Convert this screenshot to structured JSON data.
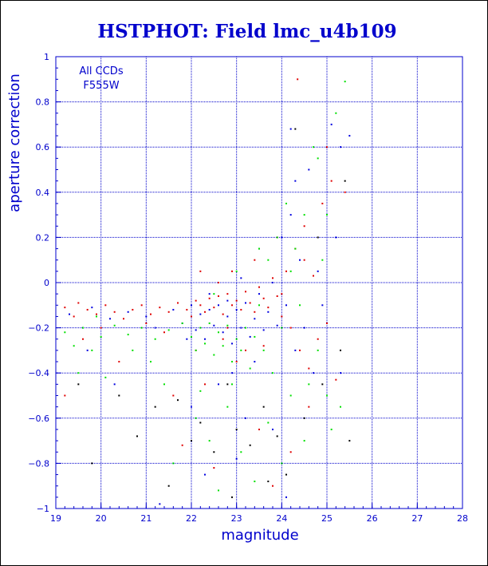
{
  "chart_data": {
    "type": "scatter",
    "title": "HSTPHOT: Field lmc_u4b109",
    "xlabel": "magnitude",
    "ylabel": "aperture correction",
    "xlim": [
      19,
      28
    ],
    "ylim": [
      -1,
      1
    ],
    "x_ticks": [
      "19",
      "20",
      "21",
      "22",
      "23",
      "24",
      "25",
      "26",
      "27",
      "28"
    ],
    "y_ticks": [
      "−1",
      "−0.8",
      "−0.6",
      "−0.4",
      "−0.2",
      "0",
      "0.2",
      "0.4",
      "0.6",
      "0.8",
      "1"
    ],
    "grid": true,
    "annotations": [
      "All CCDs",
      "F555W"
    ],
    "series": [
      {
        "color": "#e00000",
        "points": [
          [
            19.2,
            -0.11
          ],
          [
            19.4,
            -0.15
          ],
          [
            19.5,
            -0.09
          ],
          [
            19.7,
            -0.12
          ],
          [
            19.9,
            -0.14
          ],
          [
            20.1,
            -0.1
          ],
          [
            20.3,
            -0.13
          ],
          [
            20.5,
            -0.16
          ],
          [
            20.7,
            -0.12
          ],
          [
            20.9,
            -0.1
          ],
          [
            21.1,
            -0.14
          ],
          [
            21.3,
            -0.11
          ],
          [
            21.5,
            -0.13
          ],
          [
            21.7,
            -0.09
          ],
          [
            21.9,
            -0.12
          ],
          [
            22.0,
            -0.15
          ],
          [
            22.1,
            -0.08
          ],
          [
            22.2,
            -0.1
          ],
          [
            22.3,
            -0.13
          ],
          [
            22.4,
            -0.07
          ],
          [
            22.5,
            -0.11
          ],
          [
            22.6,
            -0.06
          ],
          [
            22.7,
            -0.14
          ],
          [
            22.8,
            -0.05
          ],
          [
            22.9,
            -0.1
          ],
          [
            23.0,
            -0.08
          ],
          [
            23.1,
            -0.12
          ],
          [
            23.2,
            -0.04
          ],
          [
            23.3,
            -0.09
          ],
          [
            23.4,
            -0.13
          ],
          [
            23.5,
            -0.02
          ],
          [
            23.6,
            -0.07
          ],
          [
            23.7,
            -0.11
          ],
          [
            23.8,
            0.02
          ],
          [
            23.9,
            -0.06
          ],
          [
            24.0,
            -0.15
          ],
          [
            24.1,
            0.05
          ],
          [
            24.2,
            -0.2
          ],
          [
            24.3,
            0.15
          ],
          [
            24.4,
            -0.3
          ],
          [
            24.5,
            0.1
          ],
          [
            24.6,
            -0.38
          ],
          [
            24.7,
            0.03
          ],
          [
            24.8,
            -0.25
          ],
          [
            24.9,
            0.35
          ],
          [
            25.0,
            -0.18
          ],
          [
            25.1,
            0.45
          ],
          [
            25.2,
            -0.43
          ],
          [
            25.4,
            0.4
          ],
          [
            24.35,
            0.9
          ],
          [
            19.2,
            -0.5
          ],
          [
            20.4,
            -0.35
          ],
          [
            21.6,
            -0.5
          ],
          [
            22.3,
            -0.45
          ],
          [
            22.7,
            -0.25
          ],
          [
            23.2,
            -0.3
          ],
          [
            23.5,
            -0.65
          ],
          [
            24.2,
            -0.75
          ],
          [
            24.6,
            -0.55
          ],
          [
            22.5,
            -0.82
          ],
          [
            21.8,
            -0.72
          ],
          [
            23.8,
            -0.9
          ],
          [
            22.9,
            0.05
          ],
          [
            23.4,
            0.1
          ],
          [
            22.6,
            0.0
          ],
          [
            22.8,
            -0.2
          ],
          [
            21.0,
            -0.18
          ],
          [
            20.0,
            -0.2
          ],
          [
            19.6,
            -0.25
          ],
          [
            22.2,
            0.05
          ],
          [
            24.5,
            0.25
          ],
          [
            23.9,
            0.2
          ],
          [
            22.1,
            -0.3
          ],
          [
            21.4,
            -0.22
          ],
          [
            25.0,
            0.6
          ],
          [
            24.0,
            -0.05
          ],
          [
            23.6,
            -0.28
          ],
          [
            23.0,
            -0.35
          ]
        ]
      },
      {
        "color": "#0000e0",
        "points": [
          [
            19.3,
            -0.14
          ],
          [
            19.6,
            -0.2
          ],
          [
            19.8,
            -0.11
          ],
          [
            20.2,
            -0.16
          ],
          [
            20.6,
            -0.13
          ],
          [
            21.0,
            -0.15
          ],
          [
            21.2,
            -0.2
          ],
          [
            21.6,
            -0.12
          ],
          [
            21.8,
            -0.18
          ],
          [
            22.0,
            -0.1
          ],
          [
            22.1,
            -0.21
          ],
          [
            22.2,
            -0.14
          ],
          [
            22.3,
            -0.25
          ],
          [
            22.4,
            -0.12
          ],
          [
            22.5,
            -0.19
          ],
          [
            22.6,
            -0.1
          ],
          [
            22.7,
            -0.22
          ],
          [
            22.8,
            -0.15
          ],
          [
            22.9,
            -0.27
          ],
          [
            23.0,
            -0.12
          ],
          [
            23.1,
            -0.2
          ],
          [
            23.2,
            -0.09
          ],
          [
            23.3,
            -0.24
          ],
          [
            23.4,
            -0.16
          ],
          [
            23.5,
            -0.05
          ],
          [
            23.6,
            -0.21
          ],
          [
            23.7,
            -0.13
          ],
          [
            23.8,
            0.0
          ],
          [
            23.9,
            -0.19
          ],
          [
            24.0,
            0.2
          ],
          [
            24.1,
            -0.1
          ],
          [
            24.2,
            0.3
          ],
          [
            24.3,
            -0.3
          ],
          [
            24.4,
            0.1
          ],
          [
            24.5,
            -0.2
          ],
          [
            24.6,
            0.5
          ],
          [
            24.7,
            -0.4
          ],
          [
            24.8,
            0.05
          ],
          [
            25.1,
            0.7
          ],
          [
            25.3,
            0.6
          ],
          [
            25.5,
            0.65
          ],
          [
            25.3,
            -0.4
          ],
          [
            24.2,
            0.68
          ],
          [
            22.0,
            -0.55
          ],
          [
            22.6,
            -0.45
          ],
          [
            23.2,
            -0.6
          ],
          [
            23.8,
            -0.65
          ],
          [
            22.3,
            -0.85
          ],
          [
            23.0,
            -0.78
          ],
          [
            24.1,
            -0.95
          ],
          [
            21.3,
            -0.98
          ],
          [
            20.3,
            -0.45
          ],
          [
            19.7,
            -0.3
          ],
          [
            22.9,
            -0.4
          ],
          [
            23.5,
            0.15
          ],
          [
            24.3,
            0.45
          ],
          [
            22.4,
            -0.05
          ],
          [
            23.1,
            0.02
          ],
          [
            22.8,
            -0.08
          ],
          [
            21.9,
            -0.25
          ],
          [
            23.4,
            -0.35
          ],
          [
            24.9,
            -0.1
          ],
          [
            25.2,
            0.2
          ]
        ]
      },
      {
        "color": "#00e000",
        "points": [
          [
            19.2,
            -0.22
          ],
          [
            19.4,
            -0.28
          ],
          [
            19.6,
            -0.2
          ],
          [
            19.8,
            -0.3
          ],
          [
            20.0,
            -0.24
          ],
          [
            20.3,
            -0.19
          ],
          [
            20.6,
            -0.23
          ],
          [
            20.9,
            -0.2
          ],
          [
            21.2,
            -0.25
          ],
          [
            21.5,
            -0.21
          ],
          [
            21.8,
            -0.18
          ],
          [
            22.0,
            -0.24
          ],
          [
            22.1,
            -0.3
          ],
          [
            22.2,
            -0.2
          ],
          [
            22.3,
            -0.27
          ],
          [
            22.4,
            -0.18
          ],
          [
            22.5,
            -0.32
          ],
          [
            22.6,
            -0.22
          ],
          [
            22.7,
            -0.28
          ],
          [
            22.8,
            -0.19
          ],
          [
            22.9,
            -0.35
          ],
          [
            23.0,
            -0.25
          ],
          [
            23.1,
            -0.3
          ],
          [
            23.2,
            -0.2
          ],
          [
            23.3,
            -0.38
          ],
          [
            23.4,
            -0.24
          ],
          [
            23.5,
            -0.1
          ],
          [
            23.6,
            -0.3
          ],
          [
            23.7,
            0.1
          ],
          [
            23.8,
            -0.4
          ],
          [
            23.9,
            0.2
          ],
          [
            24.0,
            -0.2
          ],
          [
            24.1,
            0.35
          ],
          [
            24.2,
            -0.5
          ],
          [
            24.3,
            0.15
          ],
          [
            24.4,
            -0.1
          ],
          [
            24.5,
            0.3
          ],
          [
            24.6,
            -0.45
          ],
          [
            24.7,
            0.6
          ],
          [
            24.8,
            -0.3
          ],
          [
            24.9,
            0.1
          ],
          [
            25.0,
            -0.5
          ],
          [
            25.1,
            -0.65
          ],
          [
            25.2,
            0.75
          ],
          [
            25.4,
            0.89
          ],
          [
            25.3,
            -0.55
          ],
          [
            19.5,
            -0.4
          ],
          [
            20.1,
            -0.42
          ],
          [
            20.7,
            -0.3
          ],
          [
            21.4,
            -0.45
          ],
          [
            22.1,
            -0.6
          ],
          [
            22.4,
            -0.7
          ],
          [
            22.8,
            -0.55
          ],
          [
            23.1,
            -0.75
          ],
          [
            23.4,
            -0.88
          ],
          [
            23.7,
            -0.62
          ],
          [
            22.6,
            -0.92
          ],
          [
            21.6,
            -0.8
          ],
          [
            24.0,
            -0.8
          ],
          [
            24.5,
            -0.7
          ],
          [
            23.0,
            0.05
          ],
          [
            22.5,
            -0.05
          ],
          [
            23.5,
            0.15
          ],
          [
            24.2,
            0.05
          ],
          [
            22.9,
            -0.45
          ],
          [
            21.1,
            -0.35
          ],
          [
            19.9,
            -0.15
          ],
          [
            24.8,
            0.55
          ],
          [
            25.0,
            0.3
          ],
          [
            22.2,
            -0.48
          ]
        ]
      },
      {
        "color": "#000000",
        "points": [
          [
            19.5,
            -0.45
          ],
          [
            19.8,
            -0.8
          ],
          [
            20.4,
            -0.5
          ],
          [
            20.8,
            -0.68
          ],
          [
            21.2,
            -0.55
          ],
          [
            21.5,
            -0.9
          ],
          [
            21.7,
            -0.52
          ],
          [
            22.0,
            -0.7
          ],
          [
            22.2,
            -0.62
          ],
          [
            22.5,
            -0.75
          ],
          [
            22.8,
            -0.45
          ],
          [
            23.0,
            -0.65
          ],
          [
            23.3,
            -0.72
          ],
          [
            23.6,
            -0.55
          ],
          [
            23.9,
            -0.68
          ],
          [
            24.1,
            -0.85
          ],
          [
            24.5,
            -0.6
          ],
          [
            24.9,
            -0.45
          ],
          [
            25.3,
            -0.3
          ],
          [
            25.5,
            -0.7
          ],
          [
            24.3,
            0.68
          ],
          [
            25.4,
            0.45
          ],
          [
            24.8,
            0.2
          ],
          [
            22.9,
            -0.95
          ],
          [
            23.7,
            -0.88
          ]
        ]
      }
    ]
  }
}
